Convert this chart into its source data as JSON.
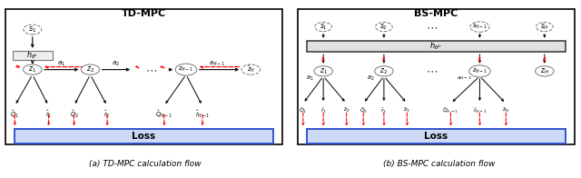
{
  "fig_width": 6.4,
  "fig_height": 1.96,
  "dpi": 100,
  "background": "#ffffff",
  "border_color": "#000000",
  "left_title": "TD-MPC",
  "right_title": "BS-MPC",
  "left_caption": "(a) TD-MPC calculation flow",
  "right_caption": "(b) BS-MPC calculation flow",
  "loss_edge": "#3355cc",
  "loss_face": "#ccd9f5",
  "hbox_face": "#eeeeee",
  "hbox_edge": "#555555",
  "hbox2_face": "#e0e0e0",
  "hbox2_edge": "#333333"
}
